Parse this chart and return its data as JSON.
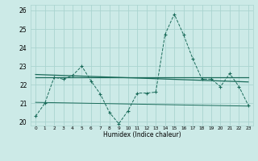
{
  "xlabel": "Humidex (Indice chaleur)",
  "bg_color": "#cceae7",
  "grid_color": "#aad4d0",
  "line_color": "#1a6b5a",
  "xlim": [
    -0.5,
    23.5
  ],
  "ylim": [
    19.8,
    26.3
  ],
  "yticks": [
    20,
    21,
    22,
    23,
    24,
    25,
    26
  ],
  "xtick_labels": [
    "0",
    "1",
    "2",
    "3",
    "4",
    "5",
    "6",
    "7",
    "8",
    "9",
    "10",
    "11",
    "12",
    "13",
    "14",
    "15",
    "16",
    "17",
    "18",
    "19",
    "20",
    "21",
    "22",
    "23"
  ],
  "series1_x": [
    0,
    1,
    2,
    3,
    4,
    5,
    6,
    7,
    8,
    9,
    10,
    11,
    12,
    13,
    14,
    15,
    16,
    17,
    18,
    19,
    20,
    21,
    22,
    23
  ],
  "series1_y": [
    20.3,
    21.0,
    22.4,
    22.3,
    22.5,
    23.0,
    22.2,
    21.5,
    20.5,
    19.9,
    20.6,
    21.55,
    21.55,
    21.6,
    24.7,
    25.8,
    24.7,
    23.4,
    22.3,
    22.3,
    21.9,
    22.6,
    21.9,
    20.9
  ],
  "series2_x": [
    0,
    23
  ],
  "series2_y": [
    22.4,
    22.4
  ],
  "series3_x": [
    0,
    23
  ],
  "series3_y": [
    22.55,
    22.15
  ],
  "series4_x": [
    0,
    23
  ],
  "series4_y": [
    21.05,
    20.85
  ]
}
